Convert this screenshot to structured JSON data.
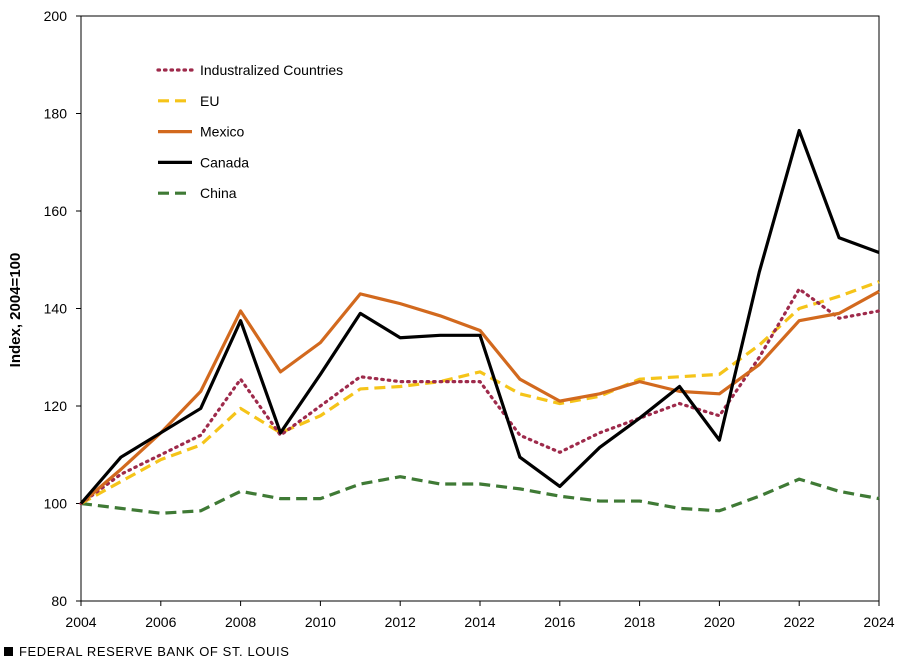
{
  "chart_data": {
    "type": "line",
    "title": "",
    "xlabel": "",
    "ylabel": "Index, 2004=100",
    "xlim": [
      2004,
      2024
    ],
    "ylim": [
      80,
      200
    ],
    "x_ticks": [
      2004,
      2006,
      2008,
      2010,
      2012,
      2014,
      2016,
      2018,
      2020,
      2022,
      2024
    ],
    "y_ticks": [
      80,
      100,
      120,
      140,
      160,
      180,
      200
    ],
    "grid": false,
    "legend_position": "top-left",
    "x": [
      2004,
      2005,
      2006,
      2007,
      2008,
      2009,
      2010,
      2011,
      2012,
      2013,
      2014,
      2015,
      2016,
      2017,
      2018,
      2019,
      2020,
      2021,
      2022,
      2023,
      2024
    ],
    "series": [
      {
        "name": "Industralized Countries",
        "color": "#9e2a4b",
        "style": "dotted",
        "values": [
          100,
          106,
          110,
          114,
          125.5,
          114,
          120,
          126,
          125,
          125,
          125,
          114,
          110.5,
          114.5,
          117.5,
          120.5,
          118,
          130,
          144,
          138,
          139.5
        ]
      },
      {
        "name": "EU",
        "color": "#f5c419",
        "style": "dashed",
        "values": [
          100,
          104.5,
          109,
          112,
          119.5,
          114.5,
          118,
          123.5,
          124,
          125,
          127,
          122.5,
          120.5,
          122,
          125.5,
          126,
          126.5,
          132.5,
          140,
          142.5,
          145.5
        ]
      },
      {
        "name": "Mexico",
        "color": "#d2691e",
        "style": "solid",
        "values": [
          100,
          107,
          114.5,
          123,
          139.5,
          127,
          133,
          143,
          141,
          138.5,
          135.5,
          125.5,
          121,
          122.5,
          125,
          123,
          122.5,
          128.5,
          137.5,
          139,
          143.5
        ]
      },
      {
        "name": "Canada",
        "color": "#000000",
        "style": "solid",
        "values": [
          100,
          109.5,
          114.5,
          119.5,
          137.5,
          114.5,
          126.5,
          139,
          134,
          134.5,
          134.5,
          109.5,
          103.5,
          111.5,
          117.5,
          124,
          113,
          147.5,
          176.5,
          154.5,
          151.5
        ]
      },
      {
        "name": "China",
        "color": "#3f7a35",
        "style": "dashed",
        "values": [
          100,
          99,
          98,
          98.5,
          102.5,
          101,
          101,
          104,
          105.5,
          104,
          104,
          103,
          101.5,
          100.5,
          100.5,
          99,
          98.5,
          101.5,
          105,
          102.5,
          101
        ]
      }
    ]
  },
  "footer": {
    "text": "FEDERAL RESERVE BANK OF ST. LOUIS"
  }
}
